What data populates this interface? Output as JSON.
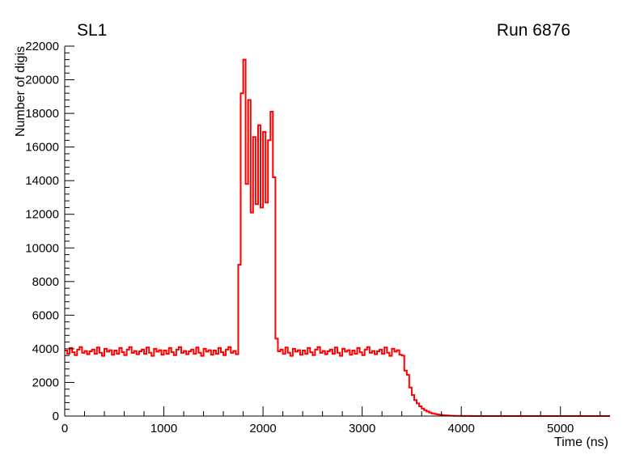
{
  "header": {
    "left_title": "SL1",
    "right_title": "Run 6876"
  },
  "axes": {
    "x_title": "Time (ns)",
    "y_title": "Number of digis"
  },
  "chart_data": {
    "type": "line",
    "style": "step-histogram",
    "title_left": "SL1",
    "title_right": "Run 6876",
    "xlabel": "Time (ns)",
    "ylabel": "Number of digis",
    "xlim": [
      0,
      5500
    ],
    "ylim": [
      0,
      22000
    ],
    "x_major_tick": 1000,
    "x_minor_tick": 200,
    "y_major_tick": 2000,
    "y_minor_tick": 400,
    "grid": false,
    "legend": "none",
    "series_color": "#ff0000",
    "x_start": 0,
    "x_step": 25,
    "values": [
      3900,
      3700,
      4050,
      3800,
      3620,
      3950,
      4100,
      3760,
      3870,
      3680,
      3850,
      3950,
      3700,
      4080,
      3770,
      3580,
      4000,
      3830,
      3920,
      3650,
      3900,
      3700,
      4050,
      3800,
      3620,
      3950,
      4100,
      3760,
      3870,
      3680,
      3850,
      3950,
      3700,
      4080,
      3770,
      3580,
      4000,
      3830,
      3920,
      3650,
      3900,
      3700,
      4050,
      3800,
      3620,
      3950,
      4100,
      3760,
      3870,
      3680,
      3850,
      3950,
      3700,
      4080,
      3770,
      3580,
      4000,
      3830,
      3920,
      3650,
      3900,
      3700,
      4050,
      3800,
      3620,
      3950,
      4100,
      3760,
      3870,
      3680,
      9000,
      19200,
      21200,
      13800,
      18800,
      12100,
      16600,
      12600,
      17300,
      12400,
      16900,
      12700,
      16400,
      18100,
      14200,
      4600,
      3850,
      3950,
      3700,
      4080,
      3770,
      3580,
      4000,
      3830,
      3920,
      3650,
      3900,
      3700,
      4050,
      3800,
      3620,
      3950,
      4100,
      3760,
      3870,
      3680,
      3850,
      3950,
      3700,
      4080,
      3770,
      3580,
      4000,
      3830,
      3920,
      3650,
      3900,
      3700,
      4050,
      3800,
      3620,
      3950,
      4100,
      3760,
      3870,
      3680,
      3850,
      3950,
      3700,
      4080,
      3770,
      3580,
      4000,
      3830,
      3920,
      3650,
      3600,
      2700,
      2450,
      1700,
      1250,
      950,
      750,
      580,
      450,
      350,
      270,
      210,
      160,
      125,
      95,
      75,
      58,
      45,
      34,
      26,
      20,
      15,
      11,
      8,
      6,
      5,
      4,
      3,
      2,
      2,
      1,
      1,
      1,
      0,
      0,
      0,
      0,
      0,
      0,
      0,
      0,
      0,
      0,
      0,
      0,
      0,
      0,
      0,
      0,
      0,
      0,
      0,
      0,
      0,
      0,
      0,
      0,
      0,
      0,
      0,
      0,
      0,
      0,
      0,
      0,
      0,
      0,
      0,
      0,
      0,
      0,
      0,
      0,
      0,
      0,
      0,
      0,
      0,
      0,
      0,
      0,
      0,
      0,
      0
    ]
  }
}
